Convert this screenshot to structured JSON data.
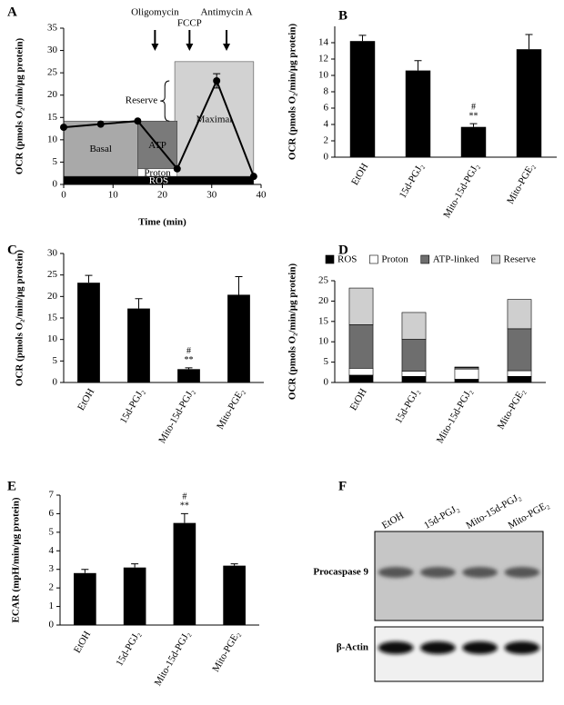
{
  "chart_data": [
    {
      "type": "line",
      "panel_label": "A",
      "xlabel": "Time (min)",
      "ylabel": "OCR (pmols O₂/min/μg protein)",
      "x": [
        0,
        7.5,
        15,
        23,
        31,
        38.5
      ],
      "series": [
        {
          "color": "#000000",
          "values": [
            12.8,
            13.5,
            14.2,
            3.5,
            23.2,
            1.8
          ],
          "errors": [
            null,
            null,
            null,
            null,
            1.6,
            null
          ]
        }
      ],
      "xlim": [
        0,
        40
      ],
      "xticks": [
        0,
        10,
        20,
        30,
        40
      ],
      "ylim": [
        0,
        35
      ],
      "yticks": [
        0,
        5,
        10,
        15,
        20,
        25,
        30,
        35
      ],
      "regions": [
        {
          "label": "Maximal",
          "x": [
            22.5,
            38.5
          ],
          "y": [
            1.8,
            27.5
          ],
          "color": "#d2d2d2"
        },
        {
          "label": "Basal",
          "x": [
            0,
            15
          ],
          "y": [
            1.8,
            14.2
          ],
          "color": "#a9a9a9"
        },
        {
          "label": "ATP",
          "x": [
            15,
            23
          ],
          "y": [
            3.5,
            14.2
          ],
          "color": "#7a7a7a"
        },
        {
          "label": "Proton",
          "x": [
            15,
            23
          ],
          "y": [
            1.8,
            3.5
          ],
          "color": "#ffffff"
        },
        {
          "label": "ROS",
          "x": [
            0,
            38.5
          ],
          "y": [
            0,
            1.8
          ],
          "color": "#000000"
        }
      ],
      "reserve": {
        "label": "Reserve",
        "x": 20.5,
        "y": [
          14.2,
          23.2
        ]
      },
      "injections": [
        {
          "label": "Oligomycin",
          "x": 18.5
        },
        {
          "label": "FCCP",
          "x": 25.5
        },
        {
          "label": "Antimycin A",
          "x": 33
        }
      ]
    },
    {
      "type": "bar",
      "panel_label": "B",
      "ylabel": "OCR (pmols O₂/min/μg protein)",
      "categories": [
        "EtOH",
        "15d-PGJ₂",
        "Mito-15d-PGJ₂",
        "Mito-PGE₂"
      ],
      "series": [
        {
          "color": "#000000",
          "values": [
            14.2,
            10.6,
            3.7,
            13.2
          ],
          "errors": [
            0.7,
            1.2,
            0.4,
            1.8
          ]
        }
      ],
      "significance": [
        null,
        null,
        [
          "#",
          "**"
        ],
        null
      ],
      "ylim": [
        0,
        16
      ],
      "yticks": [
        0,
        2,
        4,
        6,
        8,
        10,
        12,
        14
      ]
    },
    {
      "type": "bar",
      "panel_label": "C",
      "ylabel": "OCR (pmols O₂/min/μg protein)",
      "categories": [
        "EtOH",
        "15d-PGJ₂",
        "Mito-15d-PGJ₂",
        "Mito-PGE₂"
      ],
      "series": [
        {
          "color": "#000000",
          "values": [
            23.2,
            17.2,
            3.1,
            20.4
          ],
          "errors": [
            1.7,
            2.3,
            0.3,
            4.2
          ]
        }
      ],
      "significance": [
        null,
        null,
        [
          "#",
          "**"
        ],
        null
      ],
      "ylim": [
        0,
        30
      ],
      "yticks": [
        0,
        5,
        10,
        15,
        20,
        25,
        30
      ]
    },
    {
      "type": "stacked_bar",
      "panel_label": "D",
      "ylabel": "OCR (pmols O₂/min/μg protein)",
      "categories": [
        "EtOH",
        "15d-PGJ₂",
        "Mito-15d-PGJ₂",
        "Mito-PGE₂"
      ],
      "series": [
        {
          "name": "ROS",
          "color": "#000000",
          "values": [
            1.8,
            1.5,
            0.8,
            1.5
          ]
        },
        {
          "name": "Proton",
          "color": "#ffffff",
          "values": [
            1.7,
            1.3,
            2.5,
            1.4
          ]
        },
        {
          "name": "ATP-linked",
          "color": "#6e6e6e",
          "values": [
            10.7,
            7.8,
            0.4,
            10.3
          ]
        },
        {
          "name": "Reserve",
          "color": "#cfcfcf",
          "values": [
            9,
            6.6,
            0.1,
            7.2
          ]
        }
      ],
      "legend": "top",
      "ylim": [
        0,
        25
      ],
      "yticks": [
        0,
        5,
        10,
        15,
        20,
        25
      ]
    },
    {
      "type": "bar",
      "panel_label": "E",
      "ylabel": "ECAR (mpH/min/μg protein)",
      "categories": [
        "EtOH",
        "15d-PGJ₂",
        "Mito-15d-PGJ₂",
        "Mito-PGE₂"
      ],
      "series": [
        {
          "color": "#000000",
          "values": [
            2.8,
            3.1,
            5.5,
            3.2
          ],
          "errors": [
            0.2,
            0.2,
            0.5,
            0.1
          ]
        }
      ],
      "significance": [
        null,
        null,
        [
          "#",
          "**"
        ],
        null
      ],
      "ylim": [
        0,
        7
      ],
      "yticks": [
        0,
        1,
        2,
        3,
        4,
        5,
        6,
        7
      ]
    }
  ],
  "blot": {
    "panel_label": "F",
    "lanes": [
      "EtOH",
      "15d-PGJ₂",
      "Mito-15d-PGJ₂",
      "Mito-PGE₂"
    ],
    "rows": [
      {
        "label": "Procaspase 9"
      },
      {
        "label": "β-Actin"
      }
    ]
  }
}
